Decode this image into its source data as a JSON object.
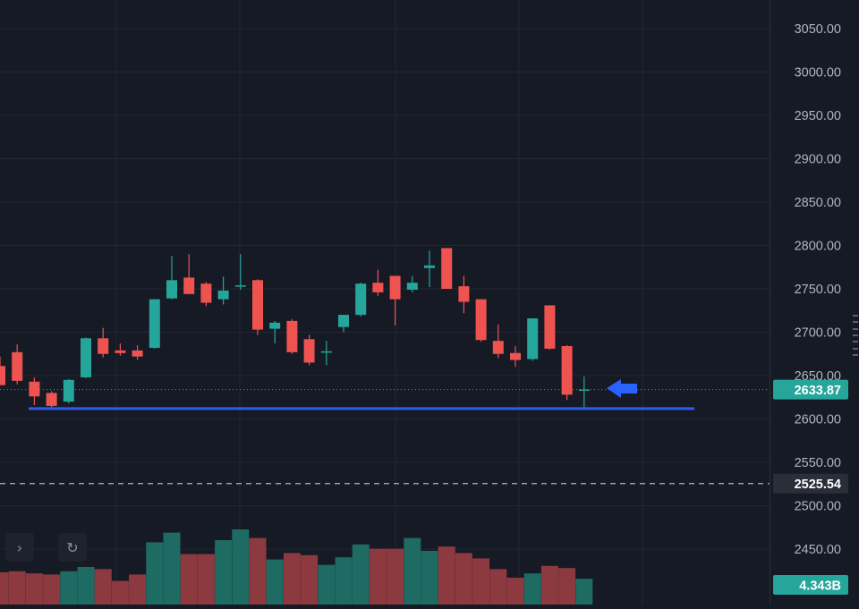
{
  "chart_data": {
    "type": "candlestick",
    "title": "",
    "xlabel": "",
    "ylabel": "",
    "ylim": [
      2419,
      3072
    ],
    "grid": true,
    "y_ticks": [
      "3050.00",
      "3000.00",
      "2950.00",
      "2900.00",
      "2850.00",
      "2800.00",
      "2750.00",
      "2700.00",
      "2650.00",
      "2600.00",
      "2550.00",
      "2500.00",
      "2450.00"
    ],
    "candles": [
      {
        "open": 2661,
        "high": 2672,
        "low": 2640,
        "close": 2639
      },
      {
        "open": 2677,
        "high": 2686,
        "low": 2640,
        "close": 2644
      },
      {
        "open": 2643,
        "high": 2648,
        "low": 2616,
        "close": 2626
      },
      {
        "open": 2630,
        "high": 2632,
        "low": 2612,
        "close": 2615
      },
      {
        "open": 2620,
        "high": 2646,
        "low": 2618,
        "close": 2645
      },
      {
        "open": 2648,
        "high": 2694,
        "low": 2647,
        "close": 2693
      },
      {
        "open": 2693,
        "high": 2705,
        "low": 2671,
        "close": 2675
      },
      {
        "open": 2679,
        "high": 2687,
        "low": 2673,
        "close": 2676
      },
      {
        "open": 2679,
        "high": 2685,
        "low": 2668,
        "close": 2672
      },
      {
        "open": 2682,
        "high": 2738,
        "low": 2681,
        "close": 2738
      },
      {
        "open": 2739,
        "high": 2788,
        "low": 2738,
        "close": 2760
      },
      {
        "open": 2763,
        "high": 2790,
        "low": 2745,
        "close": 2744
      },
      {
        "open": 2756,
        "high": 2758,
        "low": 2730,
        "close": 2734
      },
      {
        "open": 2738,
        "high": 2764,
        "low": 2732,
        "close": 2748
      },
      {
        "open": 2754,
        "high": 2790,
        "low": 2749,
        "close": 2754
      },
      {
        "open": 2760,
        "high": 2761,
        "low": 2697,
        "close": 2703
      },
      {
        "open": 2704,
        "high": 2713,
        "low": 2687,
        "close": 2711
      },
      {
        "open": 2713,
        "high": 2715,
        "low": 2675,
        "close": 2677
      },
      {
        "open": 2692,
        "high": 2697,
        "low": 2662,
        "close": 2665
      },
      {
        "open": 2678,
        "high": 2690,
        "low": 2662,
        "close": 2678
      },
      {
        "open": 2706,
        "high": 2720,
        "low": 2700,
        "close": 2720
      },
      {
        "open": 2720,
        "high": 2757,
        "low": 2718,
        "close": 2756
      },
      {
        "open": 2757,
        "high": 2772,
        "low": 2742,
        "close": 2746
      },
      {
        "open": 2765,
        "high": 2765,
        "low": 2708,
        "close": 2738
      },
      {
        "open": 2749,
        "high": 2765,
        "low": 2746,
        "close": 2757
      },
      {
        "open": 2774,
        "high": 2794,
        "low": 2752,
        "close": 2777
      },
      {
        "open": 2797,
        "high": 2797,
        "low": 2750,
        "close": 2750
      },
      {
        "open": 2753,
        "high": 2765,
        "low": 2722,
        "close": 2735
      },
      {
        "open": 2738,
        "high": 2738,
        "low": 2689,
        "close": 2691
      },
      {
        "open": 2690,
        "high": 2709,
        "low": 2670,
        "close": 2675
      },
      {
        "open": 2676,
        "high": 2684,
        "low": 2660,
        "close": 2668
      },
      {
        "open": 2669,
        "high": 2715,
        "low": 2667,
        "close": 2716
      },
      {
        "open": 2731,
        "high": 2731,
        "low": 2680,
        "close": 2681
      },
      {
        "open": 2684,
        "high": 2685,
        "low": 2622,
        "close": 2628
      },
      {
        "open": 2634,
        "high": 2649,
        "low": 2613,
        "close": 2634
      }
    ],
    "volume": {
      "values": [
        0.3,
        0.31,
        0.29,
        0.28,
        0.31,
        0.35,
        0.33,
        0.22,
        0.28,
        0.58,
        0.67,
        0.47,
        0.47,
        0.6,
        0.7,
        0.62,
        0.42,
        0.48,
        0.46,
        0.37,
        0.44,
        0.56,
        0.52,
        0.52,
        0.62,
        0.5,
        0.54,
        0.48,
        0.43,
        0.33,
        0.25,
        0.29,
        0.36,
        0.34,
        0.24
      ],
      "current_label": "4.343B"
    },
    "current_price": {
      "value": 2633.87,
      "label": "2633.87"
    },
    "marker_level": {
      "value": 2525.54,
      "label": "2525.54"
    },
    "support_line": {
      "value": 2612
    }
  },
  "colors": {
    "up": "#26a69a",
    "down": "#ef5350",
    "volume_up": "#1e6b64",
    "volume_down": "#8c3a40",
    "grid": "#232733",
    "axis_text": "#b2b5be",
    "support_line": "#2f5cf0",
    "arrow": "#2962ff",
    "price_tag": "#26a69a",
    "marker_tag": "#2a2e39"
  },
  "icons": {
    "forward": "chevron-right-icon",
    "reset": "reset-icon",
    "arrow": "arrow-left-icon"
  },
  "controls": {
    "forward_glyph": "›",
    "reset_glyph": "↻"
  }
}
